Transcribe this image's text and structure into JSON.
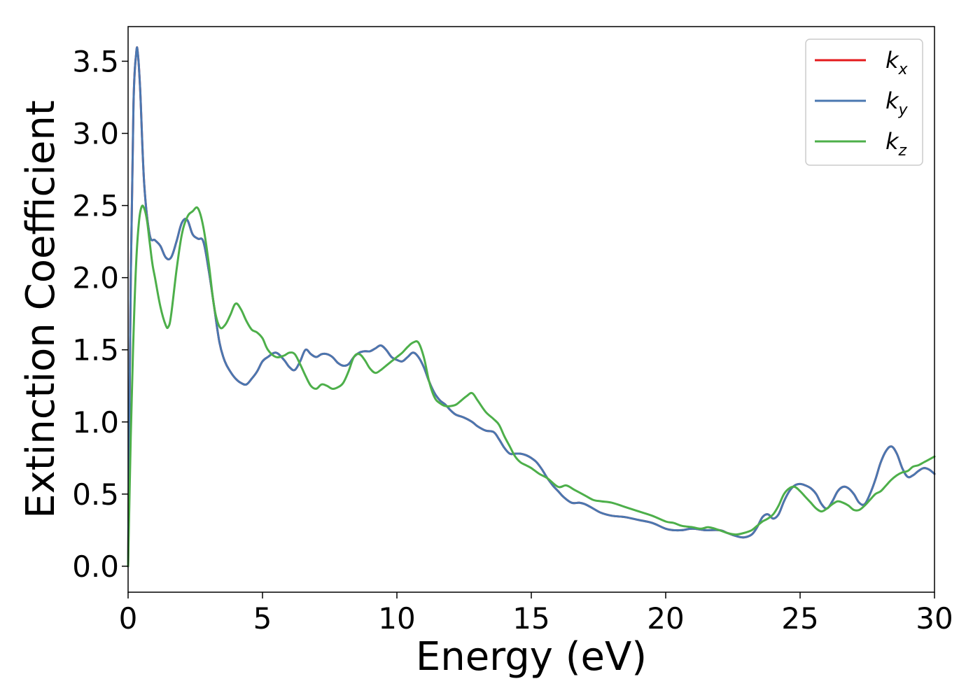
{
  "chart_data": {
    "type": "line",
    "title": "",
    "xlabel": "Energy (eV)",
    "ylabel": "Extinction Coefficient",
    "xlim": [
      0,
      30
    ],
    "ylim": [
      -0.18,
      3.74
    ],
    "xticks": [
      0,
      5,
      10,
      15,
      20,
      25,
      30
    ],
    "yticks": [
      0.0,
      0.5,
      1.0,
      1.5,
      2.0,
      2.5,
      3.0,
      3.5
    ],
    "xtick_labels": [
      "0",
      "5",
      "10",
      "15",
      "20",
      "25",
      "30"
    ],
    "ytick_labels": [
      "0.0",
      "0.5",
      "1.0",
      "1.5",
      "2.0",
      "2.5",
      "3.0",
      "3.5"
    ],
    "grid": false,
    "legend_position": "top-right",
    "series": [
      {
        "name": "k_x",
        "label_base": "k",
        "label_sub": "x",
        "color": "#e41a1c",
        "dash": "",
        "x": [
          0,
          0.1,
          0.2,
          0.3,
          0.36,
          0.45,
          0.6,
          0.8,
          1.0,
          1.2,
          1.4,
          1.6,
          1.8,
          2.0,
          2.2,
          2.4,
          2.6,
          2.8,
          3.0,
          3.2,
          3.4,
          3.6,
          3.8,
          4.0,
          4.2,
          4.4,
          4.6,
          4.8,
          5.0,
          5.2,
          5.5,
          5.8,
          6.0,
          6.2,
          6.4,
          6.6,
          6.8,
          7.0,
          7.2,
          7.4,
          7.6,
          7.8,
          8.0,
          8.2,
          8.4,
          8.6,
          8.8,
          9.0,
          9.2,
          9.4,
          9.6,
          9.8,
          10.0,
          10.2,
          10.4,
          10.6,
          10.8,
          11.0,
          11.2,
          11.4,
          11.6,
          11.8,
          12.0,
          12.2,
          12.5,
          12.8,
          13.0,
          13.3,
          13.6,
          13.8,
          14.0,
          14.2,
          14.4,
          14.6,
          14.8,
          15.0,
          15.2,
          15.4,
          15.6,
          15.8,
          16.0,
          16.2,
          16.5,
          16.8,
          17.0,
          17.3,
          17.6,
          18.0,
          18.5,
          19.0,
          19.5,
          20.0,
          20.3,
          20.6,
          21.0,
          21.5,
          22.0,
          22.3,
          22.6,
          22.9,
          23.2,
          23.4,
          23.6,
          23.8,
          24.0,
          24.2,
          24.4,
          24.6,
          24.8,
          25.0,
          25.2,
          25.4,
          25.6,
          25.8,
          26.0,
          26.2,
          26.4,
          26.6,
          26.8,
          27.0,
          27.2,
          27.4,
          27.6,
          27.8,
          28.0,
          28.2,
          28.4,
          28.6,
          28.8,
          29.0,
          29.2,
          29.4,
          29.6,
          29.8,
          30.0
        ],
        "y": [
          0.0,
          2.0,
          3.2,
          3.55,
          3.56,
          3.3,
          2.65,
          2.3,
          2.26,
          2.22,
          2.14,
          2.14,
          2.25,
          2.38,
          2.4,
          2.3,
          2.27,
          2.25,
          2.05,
          1.8,
          1.55,
          1.42,
          1.35,
          1.3,
          1.27,
          1.26,
          1.3,
          1.35,
          1.42,
          1.45,
          1.48,
          1.43,
          1.38,
          1.36,
          1.42,
          1.5,
          1.47,
          1.45,
          1.47,
          1.47,
          1.45,
          1.41,
          1.39,
          1.4,
          1.45,
          1.48,
          1.49,
          1.49,
          1.51,
          1.53,
          1.5,
          1.45,
          1.43,
          1.42,
          1.45,
          1.48,
          1.45,
          1.38,
          1.28,
          1.2,
          1.15,
          1.12,
          1.08,
          1.05,
          1.03,
          1.0,
          0.97,
          0.94,
          0.93,
          0.88,
          0.82,
          0.78,
          0.78,
          0.78,
          0.77,
          0.75,
          0.72,
          0.67,
          0.61,
          0.56,
          0.52,
          0.48,
          0.44,
          0.44,
          0.43,
          0.4,
          0.37,
          0.35,
          0.34,
          0.32,
          0.3,
          0.26,
          0.25,
          0.25,
          0.26,
          0.25,
          0.25,
          0.23,
          0.21,
          0.2,
          0.22,
          0.27,
          0.34,
          0.36,
          0.33,
          0.36,
          0.45,
          0.52,
          0.56,
          0.57,
          0.56,
          0.54,
          0.5,
          0.43,
          0.4,
          0.45,
          0.52,
          0.55,
          0.54,
          0.5,
          0.44,
          0.43,
          0.5,
          0.6,
          0.72,
          0.8,
          0.83,
          0.78,
          0.68,
          0.62,
          0.63,
          0.66,
          0.68,
          0.67,
          0.64
        ]
      },
      {
        "name": "k_y",
        "label_base": "k",
        "label_sub": "y",
        "color": "#4a77b0",
        "dash": "",
        "x": [
          0,
          0.1,
          0.2,
          0.3,
          0.36,
          0.45,
          0.6,
          0.8,
          1.0,
          1.2,
          1.4,
          1.6,
          1.8,
          2.0,
          2.2,
          2.4,
          2.6,
          2.8,
          3.0,
          3.2,
          3.4,
          3.6,
          3.8,
          4.0,
          4.2,
          4.4,
          4.6,
          4.8,
          5.0,
          5.2,
          5.5,
          5.8,
          6.0,
          6.2,
          6.4,
          6.6,
          6.8,
          7.0,
          7.2,
          7.4,
          7.6,
          7.8,
          8.0,
          8.2,
          8.4,
          8.6,
          8.8,
          9.0,
          9.2,
          9.4,
          9.6,
          9.8,
          10.0,
          10.2,
          10.4,
          10.6,
          10.8,
          11.0,
          11.2,
          11.4,
          11.6,
          11.8,
          12.0,
          12.2,
          12.5,
          12.8,
          13.0,
          13.3,
          13.6,
          13.8,
          14.0,
          14.2,
          14.4,
          14.6,
          14.8,
          15.0,
          15.2,
          15.4,
          15.6,
          15.8,
          16.0,
          16.2,
          16.5,
          16.8,
          17.0,
          17.3,
          17.6,
          18.0,
          18.5,
          19.0,
          19.5,
          20.0,
          20.3,
          20.6,
          21.0,
          21.5,
          22.0,
          22.3,
          22.6,
          22.9,
          23.2,
          23.4,
          23.6,
          23.8,
          24.0,
          24.2,
          24.4,
          24.6,
          24.8,
          25.0,
          25.2,
          25.4,
          25.6,
          25.8,
          26.0,
          26.2,
          26.4,
          26.6,
          26.8,
          27.0,
          27.2,
          27.4,
          27.6,
          27.8,
          28.0,
          28.2,
          28.4,
          28.6,
          28.8,
          29.0,
          29.2,
          29.4,
          29.6,
          29.8,
          30.0
        ],
        "y": [
          0.0,
          2.0,
          3.2,
          3.55,
          3.56,
          3.3,
          2.65,
          2.3,
          2.26,
          2.22,
          2.14,
          2.14,
          2.25,
          2.38,
          2.4,
          2.3,
          2.27,
          2.25,
          2.05,
          1.8,
          1.55,
          1.42,
          1.35,
          1.3,
          1.27,
          1.26,
          1.3,
          1.35,
          1.42,
          1.45,
          1.48,
          1.43,
          1.38,
          1.36,
          1.42,
          1.5,
          1.47,
          1.45,
          1.47,
          1.47,
          1.45,
          1.41,
          1.39,
          1.4,
          1.45,
          1.48,
          1.49,
          1.49,
          1.51,
          1.53,
          1.5,
          1.45,
          1.43,
          1.42,
          1.45,
          1.48,
          1.45,
          1.38,
          1.28,
          1.2,
          1.15,
          1.12,
          1.08,
          1.05,
          1.03,
          1.0,
          0.97,
          0.94,
          0.93,
          0.88,
          0.82,
          0.78,
          0.78,
          0.78,
          0.77,
          0.75,
          0.72,
          0.67,
          0.61,
          0.56,
          0.52,
          0.48,
          0.44,
          0.44,
          0.43,
          0.4,
          0.37,
          0.35,
          0.34,
          0.32,
          0.3,
          0.26,
          0.25,
          0.25,
          0.26,
          0.25,
          0.25,
          0.23,
          0.21,
          0.2,
          0.22,
          0.27,
          0.34,
          0.36,
          0.33,
          0.36,
          0.45,
          0.52,
          0.56,
          0.57,
          0.56,
          0.54,
          0.5,
          0.43,
          0.4,
          0.45,
          0.52,
          0.55,
          0.54,
          0.5,
          0.44,
          0.43,
          0.5,
          0.6,
          0.72,
          0.8,
          0.83,
          0.78,
          0.68,
          0.62,
          0.63,
          0.66,
          0.68,
          0.67,
          0.64
        ]
      },
      {
        "name": "k_z",
        "label_base": "k",
        "label_sub": "z",
        "color": "#4daf4a",
        "dash": "",
        "x": [
          0,
          0.1,
          0.2,
          0.3,
          0.4,
          0.5,
          0.6,
          0.7,
          0.8,
          0.9,
          1.0,
          1.2,
          1.4,
          1.5,
          1.6,
          1.8,
          2.0,
          2.2,
          2.4,
          2.6,
          2.8,
          3.0,
          3.2,
          3.4,
          3.6,
          3.8,
          4.0,
          4.2,
          4.4,
          4.6,
          4.8,
          5.0,
          5.2,
          5.5,
          5.8,
          6.0,
          6.2,
          6.4,
          6.6,
          6.8,
          7.0,
          7.2,
          7.4,
          7.6,
          7.8,
          8.0,
          8.2,
          8.4,
          8.6,
          8.8,
          9.0,
          9.2,
          9.4,
          9.6,
          9.8,
          10.0,
          10.2,
          10.4,
          10.6,
          10.8,
          11.0,
          11.2,
          11.4,
          11.6,
          11.8,
          12.0,
          12.2,
          12.4,
          12.6,
          12.8,
          13.0,
          13.3,
          13.6,
          13.8,
          14.0,
          14.2,
          14.4,
          14.6,
          14.8,
          15.0,
          15.3,
          15.6,
          16.0,
          16.3,
          16.6,
          17.0,
          17.3,
          17.6,
          18.0,
          18.5,
          19.0,
          19.5,
          20.0,
          20.3,
          20.6,
          21.0,
          21.3,
          21.6,
          22.0,
          22.3,
          22.6,
          22.9,
          23.2,
          23.4,
          23.6,
          23.8,
          24.0,
          24.2,
          24.4,
          24.6,
          24.8,
          25.0,
          25.2,
          25.4,
          25.6,
          25.8,
          26.0,
          26.2,
          26.4,
          26.6,
          26.8,
          27.0,
          27.2,
          27.4,
          27.6,
          27.8,
          28.0,
          28.2,
          28.4,
          28.6,
          28.8,
          29.0,
          29.2,
          29.4,
          29.6,
          29.8,
          30.0
        ],
        "y": [
          0.0,
          0.9,
          1.6,
          2.1,
          2.38,
          2.49,
          2.48,
          2.4,
          2.25,
          2.1,
          2.0,
          1.8,
          1.67,
          1.66,
          1.74,
          2.05,
          2.3,
          2.42,
          2.46,
          2.48,
          2.35,
          2.1,
          1.8,
          1.66,
          1.67,
          1.74,
          1.82,
          1.78,
          1.7,
          1.64,
          1.62,
          1.58,
          1.5,
          1.45,
          1.46,
          1.48,
          1.47,
          1.4,
          1.32,
          1.25,
          1.23,
          1.26,
          1.25,
          1.23,
          1.24,
          1.27,
          1.35,
          1.45,
          1.47,
          1.43,
          1.37,
          1.34,
          1.36,
          1.39,
          1.42,
          1.45,
          1.48,
          1.52,
          1.55,
          1.55,
          1.45,
          1.28,
          1.17,
          1.13,
          1.11,
          1.11,
          1.12,
          1.15,
          1.18,
          1.2,
          1.15,
          1.07,
          1.02,
          0.98,
          0.9,
          0.83,
          0.76,
          0.72,
          0.7,
          0.68,
          0.64,
          0.61,
          0.55,
          0.56,
          0.53,
          0.49,
          0.46,
          0.45,
          0.44,
          0.41,
          0.38,
          0.35,
          0.31,
          0.3,
          0.28,
          0.27,
          0.26,
          0.27,
          0.25,
          0.23,
          0.22,
          0.23,
          0.25,
          0.28,
          0.31,
          0.33,
          0.36,
          0.42,
          0.5,
          0.54,
          0.55,
          0.52,
          0.48,
          0.44,
          0.4,
          0.38,
          0.4,
          0.43,
          0.45,
          0.44,
          0.42,
          0.39,
          0.39,
          0.42,
          0.46,
          0.5,
          0.52,
          0.56,
          0.6,
          0.63,
          0.65,
          0.66,
          0.69,
          0.7,
          0.72,
          0.74,
          0.76
        ]
      }
    ]
  }
}
